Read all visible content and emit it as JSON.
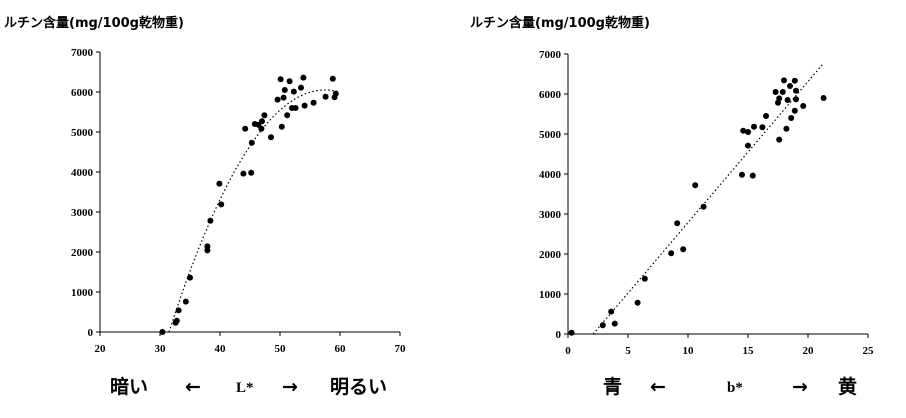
{
  "chart_data": [
    {
      "type": "scatter",
      "title": "ルチン含量(mg/100g乾物重)",
      "xlabel": {
        "left": "暗い",
        "left_arrow": "←",
        "var": "L*",
        "right_arrow": "→",
        "right": "明るい"
      },
      "xlim": [
        20,
        70
      ],
      "ylim": [
        0,
        7000
      ],
      "xticks": [
        20,
        30,
        40,
        50,
        60,
        70
      ],
      "yticks": [
        0,
        1000,
        2000,
        3000,
        4000,
        5000,
        6000,
        7000
      ],
      "grid": false,
      "trendline": {
        "kind": "polynomial",
        "style": "dotted",
        "from": [
          31.5,
          0
        ],
        "peak": [
          57.5,
          6050
        ],
        "to": [
          60,
          5960
        ]
      },
      "points": [
        [
          30.4,
          0
        ],
        [
          32.6,
          230
        ],
        [
          32.8,
          280
        ],
        [
          33.1,
          540
        ],
        [
          34.3,
          760
        ],
        [
          35.0,
          1360
        ],
        [
          37.9,
          2040
        ],
        [
          37.9,
          2140
        ],
        [
          38.4,
          2780
        ],
        [
          39.9,
          3710
        ],
        [
          40.2,
          3190
        ],
        [
          43.9,
          3960
        ],
        [
          44.2,
          5080
        ],
        [
          45.2,
          3980
        ],
        [
          45.3,
          4730
        ],
        [
          45.8,
          5200
        ],
        [
          46.4,
          5180
        ],
        [
          46.9,
          5080
        ],
        [
          47.0,
          5270
        ],
        [
          47.4,
          5420
        ],
        [
          48.5,
          4870
        ],
        [
          49.6,
          5810
        ],
        [
          50.1,
          6320
        ],
        [
          50.3,
          5130
        ],
        [
          50.6,
          5860
        ],
        [
          50.8,
          6050
        ],
        [
          51.2,
          5420
        ],
        [
          51.6,
          6270
        ],
        [
          52.3,
          6010
        ],
        [
          52.0,
          5600
        ],
        [
          52.6,
          5600
        ],
        [
          53.5,
          6110
        ],
        [
          53.9,
          6360
        ],
        [
          54.1,
          5660
        ],
        [
          55.6,
          5730
        ],
        [
          57.6,
          5880
        ],
        [
          58.8,
          6330
        ],
        [
          59.1,
          5870
        ],
        [
          59.3,
          5960
        ]
      ]
    },
    {
      "type": "scatter",
      "title": "ルチン含量(mg/100g乾物重)",
      "xlabel": {
        "left": "青",
        "left_arrow": "←",
        "var": "b*",
        "right_arrow": "→",
        "right": "黄"
      },
      "xlim": [
        0,
        25
      ],
      "ylim": [
        0,
        7000
      ],
      "xticks": [
        0,
        5,
        10,
        15,
        20,
        25
      ],
      "yticks": [
        0,
        1000,
        2000,
        3000,
        4000,
        5000,
        6000,
        7000
      ],
      "grid": false,
      "trendline": {
        "kind": "linear",
        "style": "dotted",
        "from": [
          2.1,
          0
        ],
        "to": [
          21.3,
          6770
        ]
      },
      "points": [
        [
          0.3,
          30
        ],
        [
          2.9,
          220
        ],
        [
          3.6,
          560
        ],
        [
          3.9,
          260
        ],
        [
          5.8,
          780
        ],
        [
          6.4,
          1380
        ],
        [
          8.6,
          2020
        ],
        [
          9.1,
          2770
        ],
        [
          9.6,
          2120
        ],
        [
          10.6,
          3720
        ],
        [
          11.3,
          3180
        ],
        [
          14.5,
          3980
        ],
        [
          14.6,
          5080
        ],
        [
          15.0,
          5050
        ],
        [
          15.0,
          4710
        ],
        [
          15.4,
          3960
        ],
        [
          15.5,
          5180
        ],
        [
          16.2,
          5170
        ],
        [
          16.5,
          5450
        ],
        [
          17.3,
          6050
        ],
        [
          17.5,
          5780
        ],
        [
          17.6,
          5890
        ],
        [
          17.6,
          4860
        ],
        [
          17.9,
          6050
        ],
        [
          18.0,
          6340
        ],
        [
          18.2,
          5130
        ],
        [
          18.3,
          5850
        ],
        [
          18.5,
          6200
        ],
        [
          18.6,
          5400
        ],
        [
          18.9,
          6330
        ],
        [
          18.9,
          5580
        ],
        [
          19.0,
          5870
        ],
        [
          19.0,
          6080
        ],
        [
          19.6,
          5700
        ],
        [
          21.3,
          5900
        ]
      ]
    }
  ]
}
